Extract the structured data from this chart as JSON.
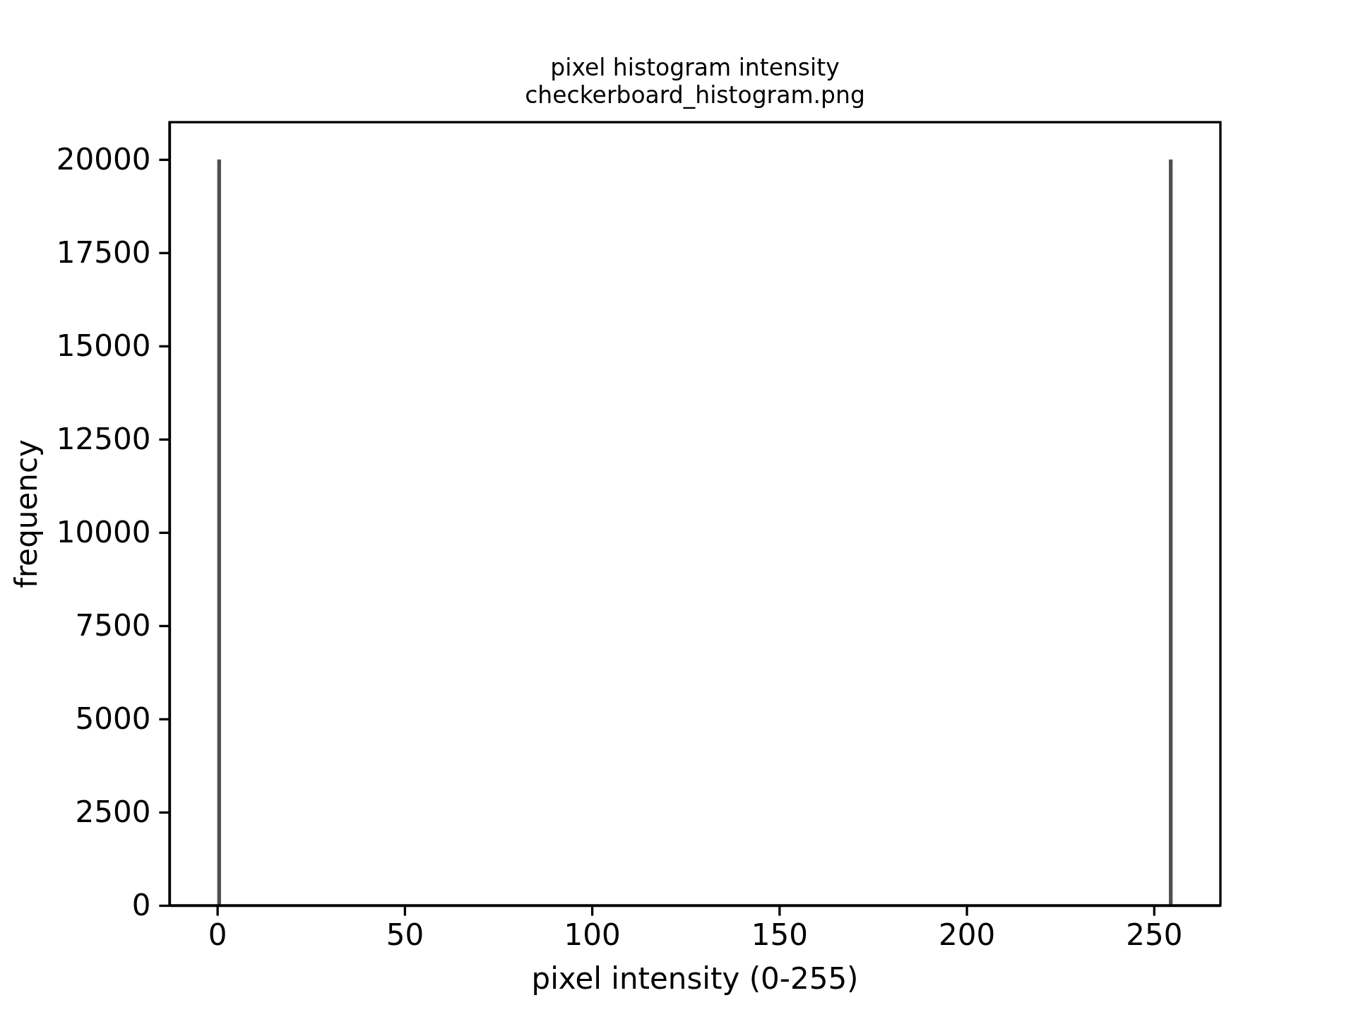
{
  "chart_data": {
    "type": "histogram",
    "title": "pixel histogram intensity",
    "subtitle": "checkerboard_histogram.png",
    "xlabel": "pixel intensity (0-255)",
    "ylabel": "frequency",
    "bins": [
      0,
      1,
      254,
      255
    ],
    "values": [
      20000,
      0,
      20000
    ],
    "color": "#4f4f4f",
    "xlim": [
      -12.75,
      267.75
    ],
    "xticks": [
      0,
      50,
      100,
      150,
      200,
      250
    ],
    "ylim": [
      0,
      21000
    ],
    "yticks": [
      0,
      2500,
      5000,
      7500,
      10000,
      12500,
      15000,
      17500,
      20000
    ],
    "grid": false
  }
}
